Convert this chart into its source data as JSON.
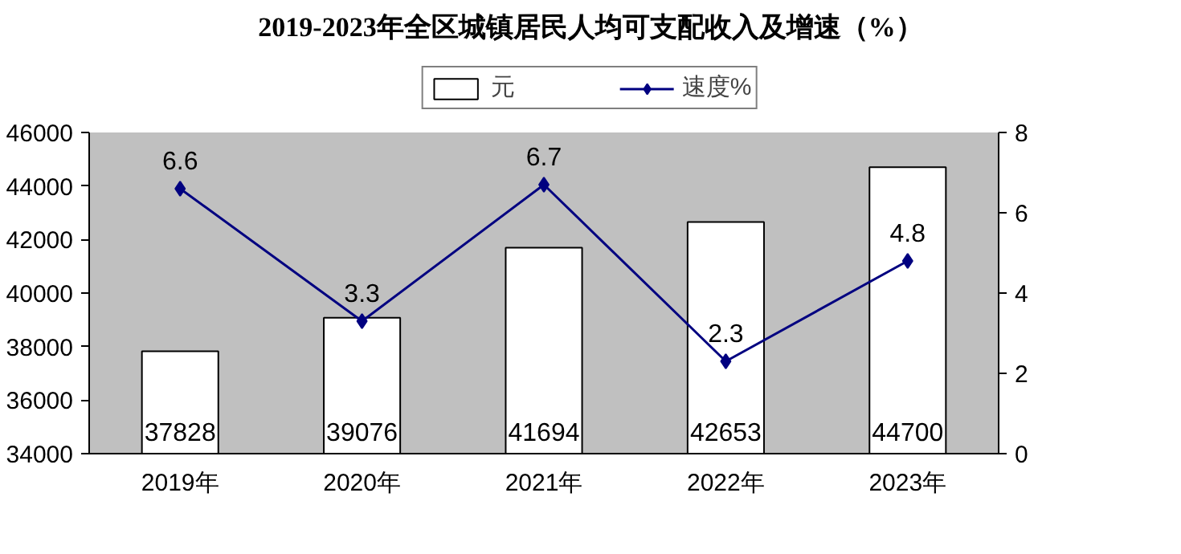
{
  "chart_data": {
    "type": "bar",
    "title": "2019-2023年全区城镇居民人均可支配收入及增速（%）",
    "categories": [
      "2019年",
      "2020年",
      "2021年",
      "2022年",
      "2023年"
    ],
    "series": [
      {
        "name": "元",
        "color": "#ffffff",
        "values": [
          37828,
          39076,
          41694,
          42653,
          44700
        ]
      },
      {
        "name": "速度%",
        "type": "line",
        "axis": "y2",
        "color": "#000080",
        "values": [
          6.6,
          3.3,
          6.7,
          2.3,
          4.8
        ]
      }
    ],
    "ylim": [
      34000,
      46000
    ],
    "yticks": [
      34000,
      36000,
      38000,
      40000,
      42000,
      44000,
      46000
    ],
    "y2lim": [
      0,
      8
    ],
    "y2ticks": [
      0,
      2,
      4,
      6,
      8
    ],
    "data_labels": true,
    "grid": false,
    "legend": "top",
    "marker": "diamond",
    "line_style": "solid"
  }
}
